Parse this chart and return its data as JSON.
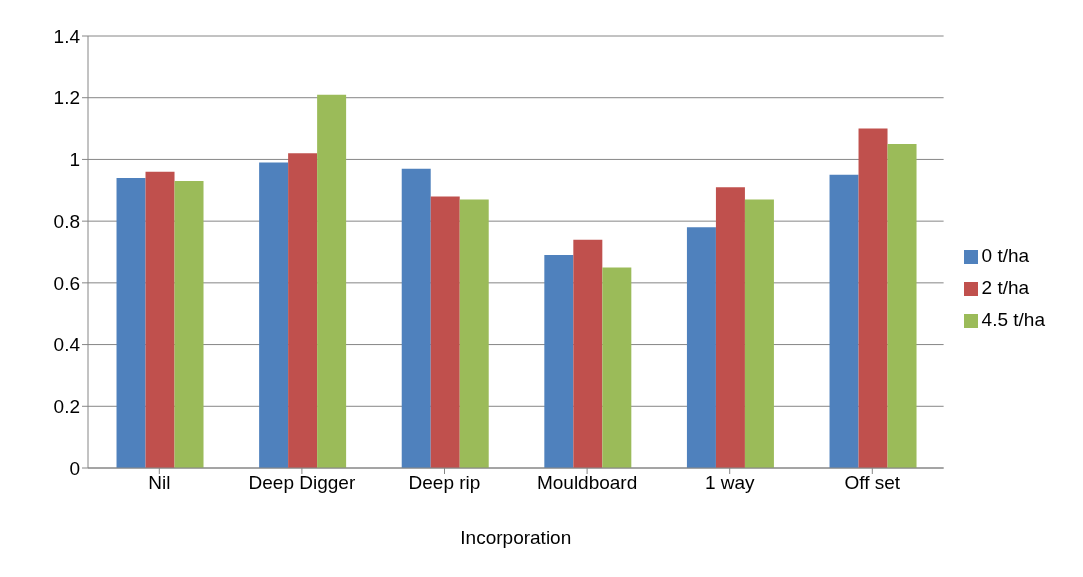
{
  "chart_data": {
    "type": "bar",
    "xlabel": "Incorporation",
    "categories": [
      "Nil",
      "Deep Digger",
      "Deep rip",
      "Mouldboard",
      "1 way",
      "Off set"
    ],
    "series": [
      {
        "name": "0 t/ha",
        "color": "#4f81bd",
        "values": [
          0.94,
          0.99,
          0.97,
          0.69,
          0.78,
          0.95
        ]
      },
      {
        "name": "2 t/ha",
        "color": "#c0504d",
        "values": [
          0.96,
          1.02,
          0.88,
          0.74,
          0.91,
          1.1
        ]
      },
      {
        "name": "4.5 t/ha",
        "color": "#9bbb59",
        "values": [
          0.93,
          1.21,
          0.87,
          0.65,
          0.87,
          1.05
        ]
      }
    ],
    "ylim": [
      0,
      1.4
    ],
    "yticks": [
      0,
      0.2,
      0.4,
      0.6,
      0.8,
      1,
      1.2,
      1.4
    ],
    "grid": "y",
    "legend": "right"
  }
}
